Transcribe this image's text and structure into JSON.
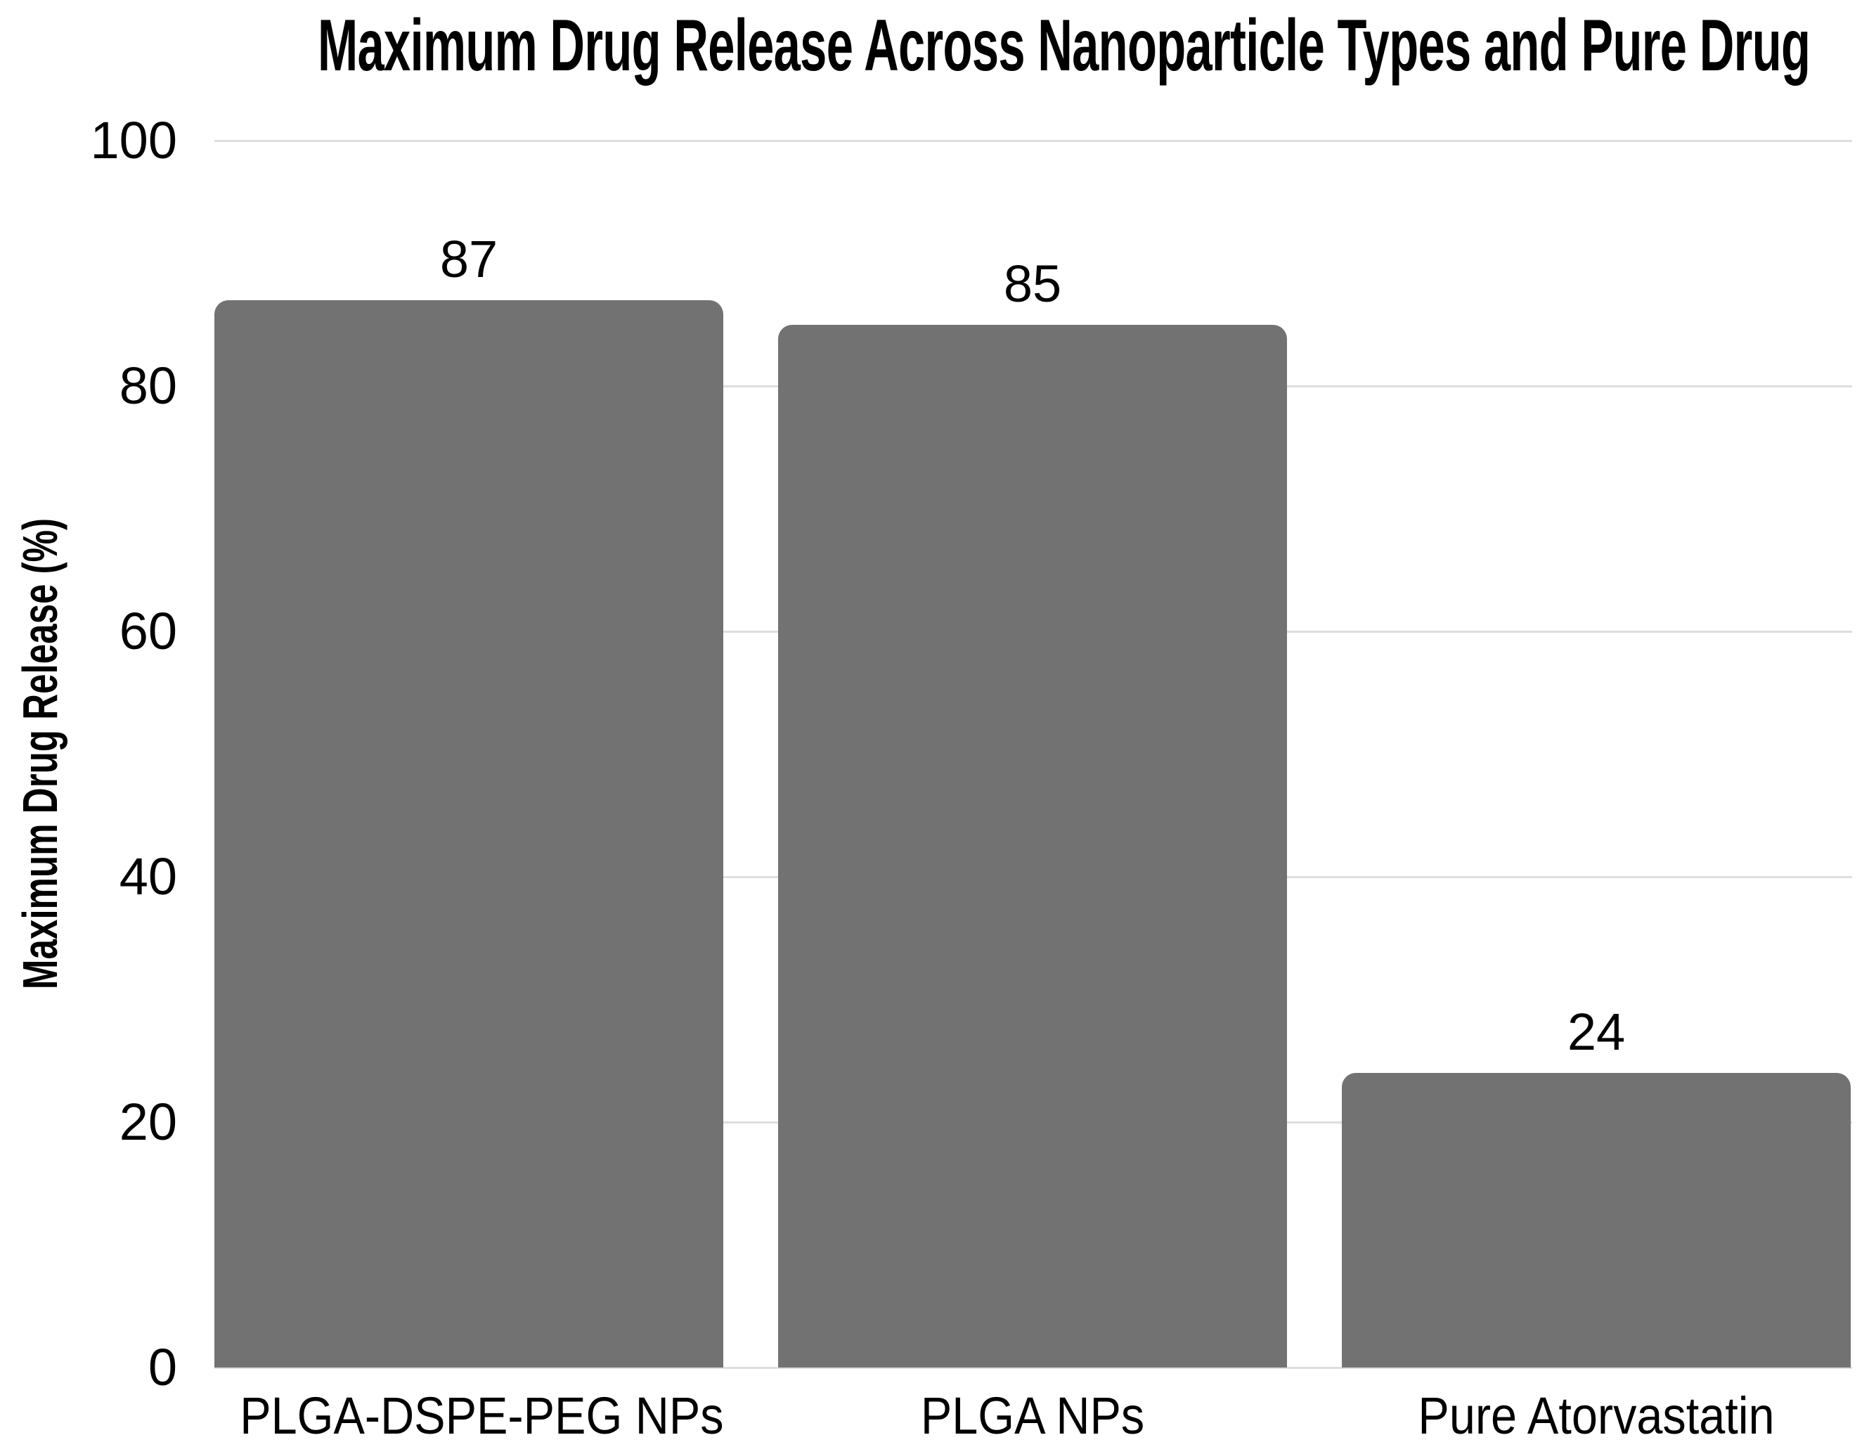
{
  "chart_data": {
    "type": "bar",
    "title": "Maximum Drug Release Across Nanoparticle Types and Pure Drug",
    "categories": [
      "PLGA-DSPE-PEG NPs",
      "PLGA NPs",
      "Pure Atorvastatin"
    ],
    "values": [
      87,
      85,
      24
    ],
    "xlabel": "",
    "ylabel": "Maximum Drug Release (%)",
    "ylim": [
      0,
      100
    ],
    "yticks": [
      0,
      20,
      40,
      60,
      80,
      100
    ],
    "grid": "horizontal",
    "legend": "none",
    "bar_color": "#727272",
    "gridline_color": "#dedede",
    "background_color": "#ffffff",
    "text_color": "#000000"
  }
}
